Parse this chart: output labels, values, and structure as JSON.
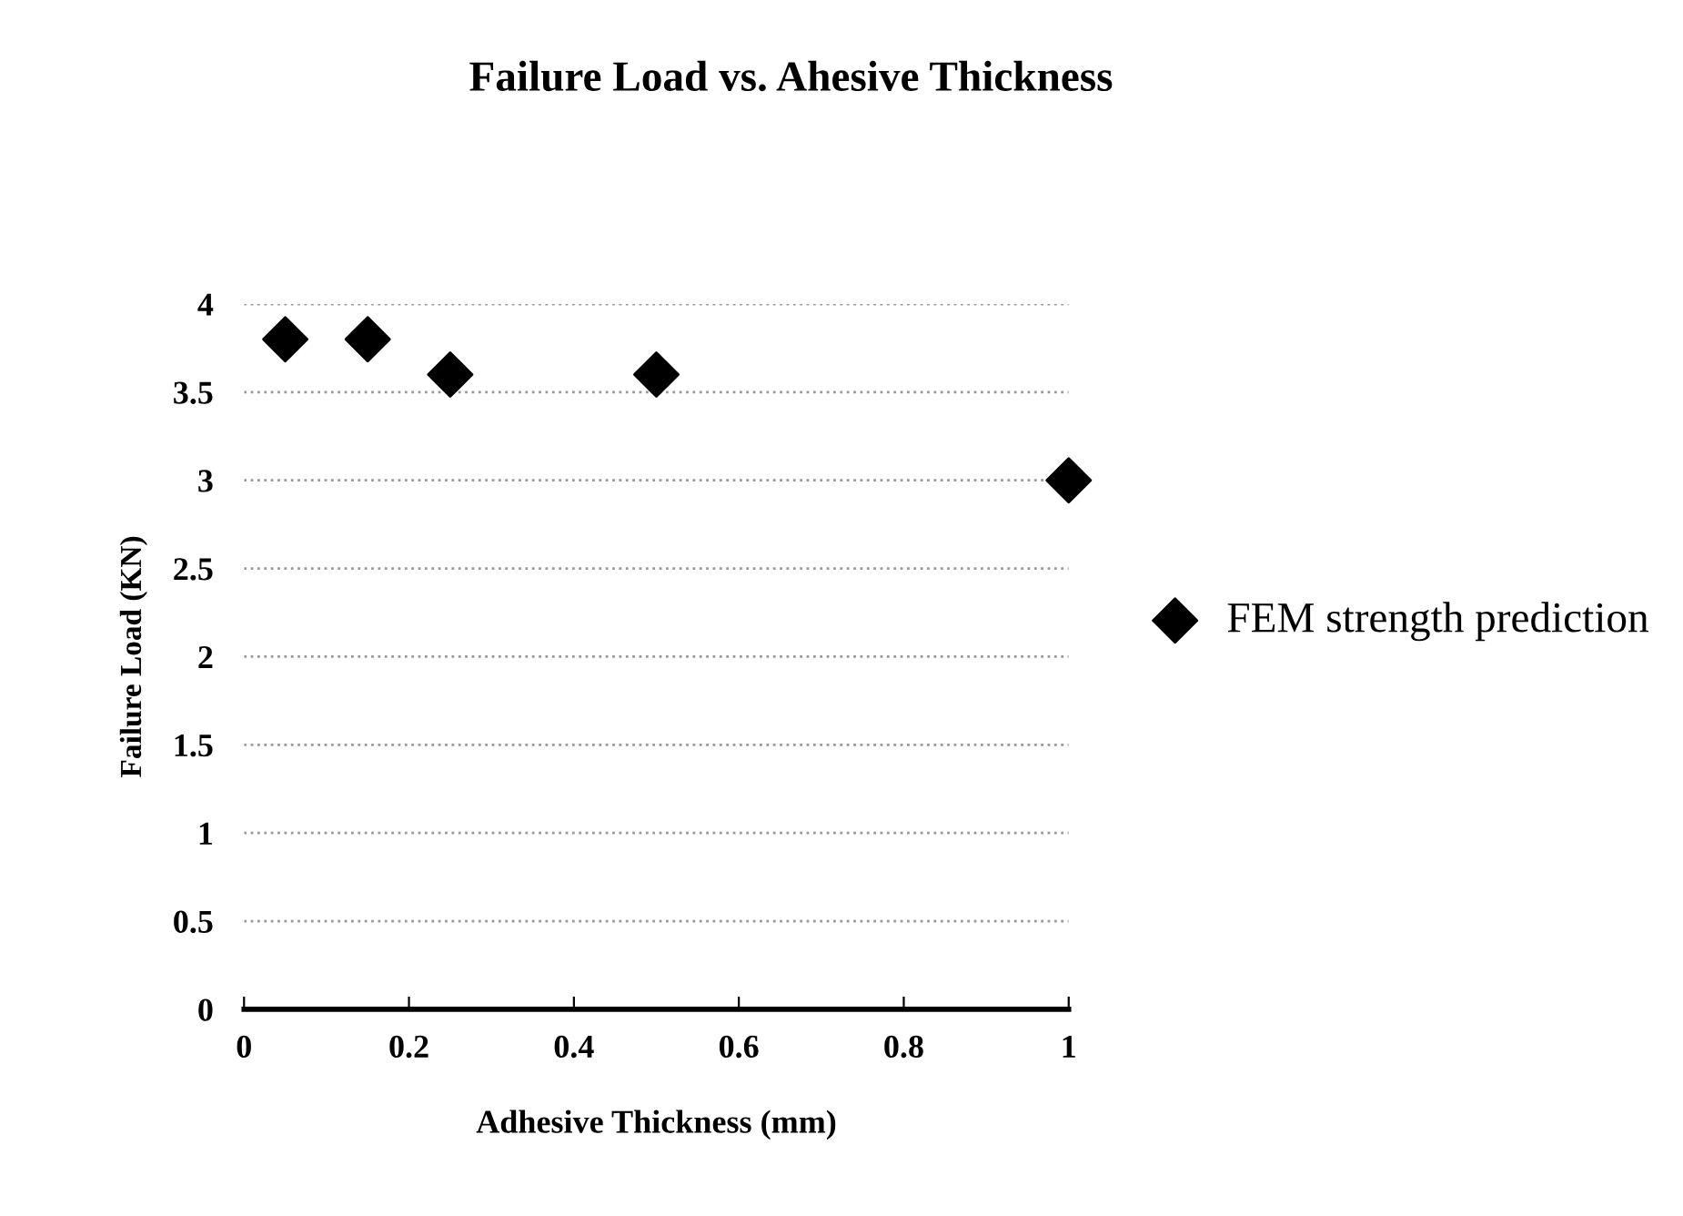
{
  "chart_data": {
    "type": "scatter",
    "title": "Failure Load vs. Ahesive Thickness",
    "xlabel": "Adhesive Thickness (mm)",
    "ylabel": "Failure Load (KN)",
    "x": [
      0.05,
      0.15,
      0.25,
      0.5,
      1
    ],
    "series": [
      {
        "name": "FEM strength prediction",
        "color": "#000000",
        "values": [
          3.8,
          3.8,
          3.6,
          3.6,
          3.0
        ]
      }
    ],
    "xlim": [
      0,
      1
    ],
    "xticks": [
      0,
      0.2,
      0.4,
      0.6,
      0.8,
      1
    ],
    "ylim": [
      0,
      4
    ],
    "yticks": [
      0,
      0.5,
      1,
      1.5,
      2,
      2.5,
      3,
      3.5,
      4
    ],
    "grid": "y",
    "legend": "right",
    "marker": "diamond"
  }
}
